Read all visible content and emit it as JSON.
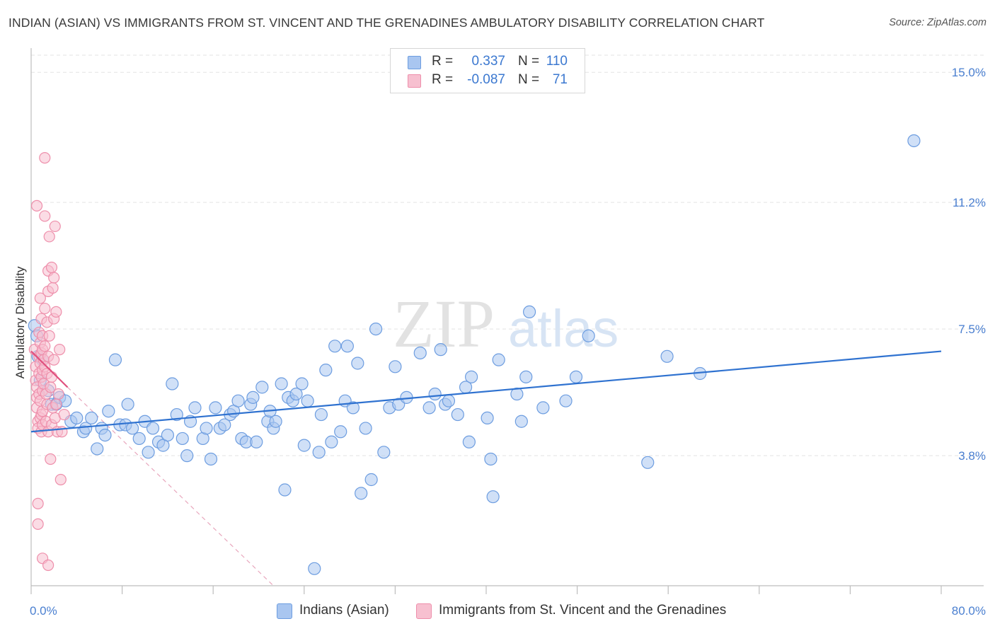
{
  "header": {
    "title": "INDIAN (ASIAN) VS IMMIGRANTS FROM ST. VINCENT AND THE GRENADINES AMBULATORY DISABILITY CORRELATION CHART",
    "source": "Source: ZipAtlas.com"
  },
  "legend": {
    "rows": [
      {
        "r_label": "R =",
        "r_value": "0.337",
        "n_label": "N =",
        "n_value": "110",
        "color": "#a9c6f0",
        "border": "#6d9de0"
      },
      {
        "r_label": "R =",
        "r_value": "-0.087",
        "n_label": "N =",
        "n_value": "71",
        "color": "#f7c0d0",
        "border": "#ee8fab"
      }
    ]
  },
  "bottom_legend": [
    {
      "label": "Indians (Asian)",
      "color": "#a9c6f0",
      "border": "#6d9de0"
    },
    {
      "label": "Immigrants from St. Vincent and the Grenadines",
      "color": "#f7c0d0",
      "border": "#ee8fab"
    }
  ],
  "watermark": {
    "zip": "ZIP",
    "atlas": "atlas"
  },
  "chart_data": {
    "type": "scatter",
    "title": "INDIAN (ASIAN) VS IMMIGRANTS FROM ST. VINCENT AND THE GRENADINES AMBULATORY DISABILITY CORRELATION CHART",
    "ylabel": "Ambulatory Disability",
    "xlabel": "",
    "xlim": [
      0,
      80
    ],
    "ylim": [
      0,
      15.5
    ],
    "x_tick_labels": [
      {
        "value": 0,
        "label": "0.0%"
      },
      {
        "value": 80,
        "label": "80.0%"
      }
    ],
    "y_tick_labels": [
      {
        "value": 3.8,
        "label": "3.8%"
      },
      {
        "value": 7.5,
        "label": "7.5%"
      },
      {
        "value": 11.2,
        "label": "11.2%"
      },
      {
        "value": 15.0,
        "label": "15.0%"
      }
    ],
    "grid": "horizontal dashed",
    "legend_position": "top-center",
    "series": [
      {
        "name": "Indians (Asian)",
        "color": "#a9c6f0",
        "stroke": "#6d9de0",
        "trend": {
          "x0": 0,
          "y0": 4.5,
          "x1": 80,
          "y1": 6.85,
          "color": "#2f72d0"
        },
        "points": [
          [
            0.3,
            7.6
          ],
          [
            0.5,
            7.3
          ],
          [
            0.6,
            6.7
          ],
          [
            0.8,
            6.0
          ],
          [
            1.0,
            6.6
          ],
          [
            1.5,
            5.7
          ],
          [
            1.8,
            5.3
          ],
          [
            2.2,
            5.3
          ],
          [
            2.5,
            5.5
          ],
          [
            3.0,
            5.4
          ],
          [
            3.5,
            4.8
          ],
          [
            4.0,
            4.9
          ],
          [
            4.6,
            4.5
          ],
          [
            4.8,
            4.6
          ],
          [
            5.3,
            4.9
          ],
          [
            5.8,
            4.0
          ],
          [
            6.2,
            4.6
          ],
          [
            6.5,
            4.4
          ],
          [
            6.8,
            5.1
          ],
          [
            7.4,
            6.6
          ],
          [
            7.8,
            4.7
          ],
          [
            8.3,
            4.7
          ],
          [
            8.5,
            5.3
          ],
          [
            8.9,
            4.6
          ],
          [
            9.5,
            4.3
          ],
          [
            10.0,
            4.8
          ],
          [
            10.3,
            3.9
          ],
          [
            10.7,
            4.6
          ],
          [
            11.2,
            4.2
          ],
          [
            11.6,
            4.1
          ],
          [
            12.0,
            4.4
          ],
          [
            12.4,
            5.9
          ],
          [
            12.8,
            5.0
          ],
          [
            13.3,
            4.3
          ],
          [
            13.7,
            3.8
          ],
          [
            14.0,
            4.8
          ],
          [
            14.4,
            5.2
          ],
          [
            15.1,
            4.3
          ],
          [
            15.4,
            4.6
          ],
          [
            15.8,
            3.7
          ],
          [
            16.2,
            5.2
          ],
          [
            16.6,
            4.6
          ],
          [
            17.0,
            4.7
          ],
          [
            17.5,
            5.0
          ],
          [
            17.8,
            5.1
          ],
          [
            18.2,
            5.4
          ],
          [
            18.5,
            4.3
          ],
          [
            18.9,
            4.2
          ],
          [
            19.3,
            5.3
          ],
          [
            19.5,
            5.5
          ],
          [
            19.8,
            4.2
          ],
          [
            20.3,
            5.8
          ],
          [
            20.8,
            4.8
          ],
          [
            21.0,
            5.1
          ],
          [
            21.3,
            4.6
          ],
          [
            21.5,
            4.8
          ],
          [
            22.0,
            5.9
          ],
          [
            22.3,
            2.8
          ],
          [
            22.6,
            5.5
          ],
          [
            23.0,
            5.4
          ],
          [
            23.3,
            5.6
          ],
          [
            23.8,
            5.9
          ],
          [
            24.0,
            4.1
          ],
          [
            24.3,
            5.4
          ],
          [
            24.9,
            0.5
          ],
          [
            25.3,
            3.9
          ],
          [
            25.5,
            5.0
          ],
          [
            25.9,
            6.3
          ],
          [
            26.4,
            4.2
          ],
          [
            26.7,
            7.0
          ],
          [
            27.2,
            4.5
          ],
          [
            27.6,
            5.4
          ],
          [
            27.8,
            7.0
          ],
          [
            28.3,
            5.2
          ],
          [
            28.7,
            6.5
          ],
          [
            29.0,
            2.7
          ],
          [
            29.4,
            4.6
          ],
          [
            29.9,
            3.1
          ],
          [
            30.3,
            7.5
          ],
          [
            31.0,
            3.9
          ],
          [
            31.5,
            5.2
          ],
          [
            32.0,
            6.4
          ],
          [
            32.3,
            5.3
          ],
          [
            33.0,
            5.5
          ],
          [
            34.2,
            6.8
          ],
          [
            35.0,
            5.2
          ],
          [
            35.5,
            5.6
          ],
          [
            36.0,
            6.9
          ],
          [
            36.4,
            5.3
          ],
          [
            36.7,
            5.4
          ],
          [
            37.5,
            5.0
          ],
          [
            38.2,
            5.8
          ],
          [
            38.5,
            4.2
          ],
          [
            38.7,
            6.1
          ],
          [
            40.1,
            4.9
          ],
          [
            40.4,
            3.7
          ],
          [
            40.6,
            2.6
          ],
          [
            41.1,
            6.6
          ],
          [
            42.7,
            5.6
          ],
          [
            43.1,
            4.8
          ],
          [
            43.5,
            6.1
          ],
          [
            43.8,
            8.0
          ],
          [
            45.0,
            5.2
          ],
          [
            47.0,
            5.4
          ],
          [
            47.9,
            6.1
          ],
          [
            49.0,
            7.3
          ],
          [
            54.2,
            3.6
          ],
          [
            55.9,
            6.7
          ],
          [
            58.8,
            6.2
          ],
          [
            77.6,
            13.0
          ]
        ]
      },
      {
        "name": "Immigrants from St. Vincent and the Grenadines",
        "color": "#f7c0d0",
        "stroke": "#ee8fab",
        "trend": {
          "x0": 0,
          "y0": 6.85,
          "x1": 3.2,
          "y1": 5.8,
          "color": "#e0507e"
        },
        "trend_extended": {
          "x0": 3.2,
          "y0": 5.8,
          "x1": 21.3,
          "y1": 0,
          "color": "#e8a7bd"
        },
        "points": [
          [
            0.3,
            6.9
          ],
          [
            0.4,
            6.4
          ],
          [
            0.4,
            6.0
          ],
          [
            0.5,
            5.8
          ],
          [
            0.5,
            5.5
          ],
          [
            0.5,
            5.2
          ],
          [
            0.6,
            4.8
          ],
          [
            0.6,
            4.6
          ],
          [
            0.7,
            7.4
          ],
          [
            0.7,
            6.7
          ],
          [
            0.7,
            6.2
          ],
          [
            0.7,
            5.6
          ],
          [
            0.8,
            8.4
          ],
          [
            0.8,
            7.1
          ],
          [
            0.8,
            6.5
          ],
          [
            0.8,
            5.4
          ],
          [
            0.8,
            4.9
          ],
          [
            0.9,
            7.8
          ],
          [
            0.9,
            6.8
          ],
          [
            0.9,
            6.1
          ],
          [
            0.9,
            5.0
          ],
          [
            0.9,
            4.5
          ],
          [
            1.0,
            7.3
          ],
          [
            1.0,
            6.9
          ],
          [
            1.0,
            6.3
          ],
          [
            1.0,
            5.7
          ],
          [
            1.0,
            5.1
          ],
          [
            1.0,
            4.7
          ],
          [
            1.1,
            6.6
          ],
          [
            1.1,
            5.9
          ],
          [
            1.2,
            12.5
          ],
          [
            1.2,
            10.8
          ],
          [
            1.2,
            8.1
          ],
          [
            1.2,
            7.0
          ],
          [
            1.2,
            6.4
          ],
          [
            1.3,
            5.6
          ],
          [
            1.3,
            4.8
          ],
          [
            1.4,
            7.7
          ],
          [
            1.4,
            6.2
          ],
          [
            1.4,
            5.3
          ],
          [
            1.5,
            9.2
          ],
          [
            1.5,
            8.6
          ],
          [
            1.5,
            6.7
          ],
          [
            1.5,
            4.5
          ],
          [
            1.6,
            10.2
          ],
          [
            1.6,
            7.3
          ],
          [
            1.7,
            5.8
          ],
          [
            1.7,
            3.7
          ],
          [
            1.8,
            9.3
          ],
          [
            1.8,
            6.1
          ],
          [
            1.8,
            4.7
          ],
          [
            1.9,
            8.7
          ],
          [
            1.9,
            5.2
          ],
          [
            2.0,
            9.0
          ],
          [
            2.0,
            7.8
          ],
          [
            2.0,
            6.6
          ],
          [
            2.1,
            10.5
          ],
          [
            2.1,
            4.9
          ],
          [
            2.2,
            8.0
          ],
          [
            2.2,
            5.3
          ],
          [
            2.3,
            4.5
          ],
          [
            2.4,
            5.6
          ],
          [
            2.5,
            6.9
          ],
          [
            2.6,
            3.1
          ],
          [
            2.7,
            4.5
          ],
          [
            2.9,
            5.0
          ],
          [
            0.5,
            11.1
          ],
          [
            0.6,
            2.4
          ],
          [
            0.6,
            1.8
          ],
          [
            1.0,
            0.8
          ],
          [
            1.5,
            0.6
          ]
        ]
      }
    ]
  }
}
